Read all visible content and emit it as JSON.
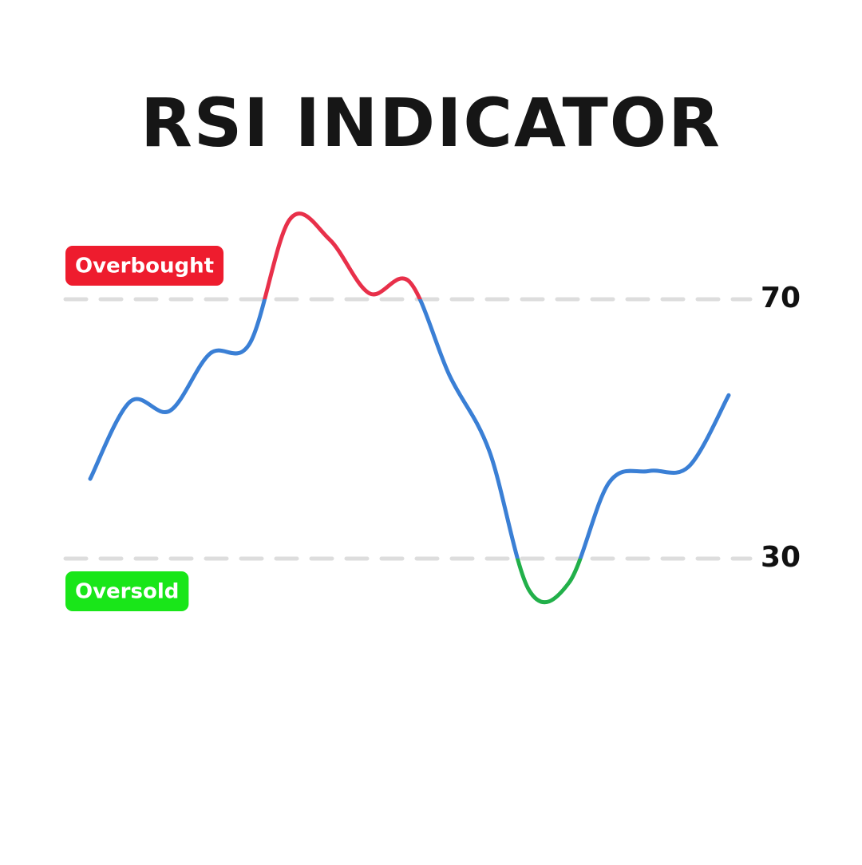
{
  "chart_data": {
    "type": "line",
    "title": "RSI INDICATOR",
    "categories": [
      null,
      null,
      null,
      null,
      null,
      null,
      null,
      null,
      null,
      null,
      null,
      null,
      null,
      null,
      null,
      null,
      null
    ],
    "series": [
      {
        "color": "#3a7fd5",
        "values": [
          42.3,
          54.2,
          52.8,
          61.6,
          63.2,
          82.3,
          79.2,
          70.9,
          72.7,
          58.3,
          46.6,
          25.1,
          26.3,
          41.7,
          43.5,
          44.2,
          55.2
        ]
      }
    ],
    "overbought_color": "#e8304a",
    "oversold_color": "#22b04a",
    "ylim": [
      0,
      100
    ],
    "yticks": [
      30,
      70
    ],
    "grid": true,
    "annotations": [
      {
        "text": "Overbought",
        "color": "#ee1c2e"
      },
      {
        "text": "Oversold",
        "color": "#19e619"
      }
    ]
  }
}
